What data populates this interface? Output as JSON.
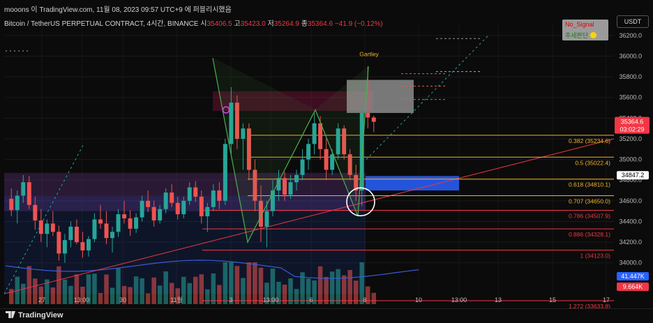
{
  "header": {
    "publisher_line": "mooons 이 TradingView.com, 11월 08, 2023 09:57 UTC+9 에 퍼블리시했음",
    "symbol": "Bitcoin / TetherUS PERPETUAL CONTRACT, 4시간, BINANCE",
    "o_label": "시",
    "o_value": "35406.5",
    "h_label": "고",
    "h_value": "35423.0",
    "l_label": "저",
    "l_value": "35264.9",
    "c_label": "종",
    "c_value": "35364.6",
    "change": "−41.9 (−0.12%)",
    "currency": "USDT"
  },
  "indicator_box": {
    "line1": "No_Signal",
    "line2": "추세판단"
  },
  "pattern_label": "Gartley",
  "footer": {
    "logo_text": "TradingView"
  },
  "colors": {
    "bg": "#0b0b0b",
    "up": "#26a69a",
    "down": "#ef5350",
    "fib": "#f0b429",
    "fib_low": "#f23645",
    "harmonic": "#4caf50",
    "demand_zone": "#2962ff",
    "supply_zone": "#9c27b0",
    "trendline": "#f23645",
    "ma": "#3a5bd9"
  },
  "chart_data": {
    "type": "candlestick",
    "timeframe": "4h",
    "y_axis": {
      "min": 33600,
      "max": 36300,
      "ticks": [
        36200,
        36000,
        35800,
        35600,
        35400,
        35200,
        35000,
        34800,
        34600,
        34400,
        34200,
        34000
      ]
    },
    "x_ticks": [
      "27",
      "13:00",
      "30",
      "11월",
      "3",
      "13:00",
      "6",
      "8",
      "10",
      "13:00",
      "13",
      "15",
      "17"
    ],
    "price_badges": [
      {
        "value": "35364.6",
        "sub": "03:02:29",
        "kind": "last"
      },
      {
        "value": "34847.2",
        "kind": "line"
      },
      {
        "value": "41.447K",
        "kind": "volume"
      },
      {
        "value": "9.664K",
        "kind": "volume_down"
      }
    ],
    "fib_levels": [
      {
        "label": "0.382 (35234.6)",
        "ratio": 0.382,
        "price": 35234.6
      },
      {
        "label": "0.5 (35022.4)",
        "ratio": 0.5,
        "price": 35022.4
      },
      {
        "label": "0.618 (34810.1)",
        "ratio": 0.618,
        "price": 34810.1
      },
      {
        "label": "0.707 (34650.0)",
        "ratio": 0.707,
        "price": 34650.0
      },
      {
        "label": "0.786 (34507.9)",
        "ratio": 0.786,
        "price": 34507.9
      },
      {
        "label": "0.886 (34328.1)",
        "ratio": 0.886,
        "price": 34328.1
      },
      {
        "label": "1 (34123.0)",
        "ratio": 1,
        "price": 34123.0
      },
      {
        "label": "1.272 (33633.8)",
        "ratio": 1.272,
        "price": 33633.8
      }
    ],
    "harmonic_points": [
      {
        "t": 0.205,
        "p": 35700
      },
      {
        "t": 0.283,
        "p": 34150
      },
      {
        "t": 0.385,
        "p": 35450
      },
      {
        "t": 0.425,
        "p": 34920
      },
      {
        "t": 0.43,
        "p": 34550
      },
      {
        "t": 0.458,
        "p": 35900
      }
    ],
    "zones": [
      {
        "name": "supply",
        "p_top": 35660,
        "p_bot": 35470
      },
      {
        "name": "demand",
        "p_top": 34840,
        "p_bot": 34700
      },
      {
        "name": "range",
        "p_top": 34870,
        "p_bot": 34500
      },
      {
        "name": "target",
        "p_top": 35770,
        "p_bot": 35450
      }
    ],
    "candles": [
      [
        34620,
        34720,
        34450,
        34510
      ],
      [
        34510,
        34700,
        34380,
        34650
      ],
      [
        34650,
        34850,
        34580,
        34780
      ],
      [
        34780,
        34840,
        34520,
        34560
      ],
      [
        34560,
        34640,
        34320,
        34410
      ],
      [
        34410,
        34520,
        34200,
        34280
      ],
      [
        34280,
        34420,
        34150,
        34380
      ],
      [
        34380,
        34500,
        34260,
        34300
      ],
      [
        34300,
        34360,
        34020,
        34090
      ],
      [
        34090,
        34280,
        34000,
        34220
      ],
      [
        34220,
        34400,
        34150,
        34350
      ],
      [
        34350,
        34420,
        34180,
        34200
      ],
      [
        34200,
        34300,
        34050,
        34120
      ],
      [
        34120,
        34260,
        34060,
        34230
      ],
      [
        34230,
        34480,
        34200,
        34420
      ],
      [
        34420,
        34560,
        34330,
        34380
      ],
      [
        34380,
        34500,
        34180,
        34240
      ],
      [
        34240,
        34350,
        34100,
        34300
      ],
      [
        34300,
        34520,
        34250,
        34470
      ],
      [
        34470,
        34600,
        34380,
        34430
      ],
      [
        34430,
        34510,
        34260,
        34330
      ],
      [
        34330,
        34480,
        34290,
        34440
      ],
      [
        34440,
        34650,
        34400,
        34600
      ],
      [
        34600,
        34700,
        34490,
        34540
      ],
      [
        34540,
        34600,
        34350,
        34410
      ],
      [
        34410,
        34560,
        34380,
        34520
      ],
      [
        34520,
        34720,
        34480,
        34680
      ],
      [
        34680,
        34760,
        34540,
        34580
      ],
      [
        34580,
        34640,
        34420,
        34470
      ],
      [
        34470,
        34640,
        34430,
        34600
      ],
      [
        34600,
        34780,
        34560,
        34730
      ],
      [
        34730,
        34790,
        34590,
        34640
      ],
      [
        34640,
        34700,
        34380,
        34450
      ],
      [
        34450,
        34580,
        34300,
        34540
      ],
      [
        34540,
        34760,
        34500,
        34700
      ],
      [
        34700,
        34780,
        34520,
        34600
      ],
      [
        34600,
        35200,
        34560,
        35150
      ],
      [
        35150,
        35700,
        35050,
        35550
      ],
      [
        35550,
        35620,
        35100,
        35200
      ],
      [
        35200,
        35350,
        34900,
        35300
      ],
      [
        35300,
        35350,
        34800,
        34900
      ],
      [
        34900,
        35000,
        34500,
        34600
      ],
      [
        34600,
        34750,
        34200,
        34350
      ],
      [
        34350,
        34600,
        34150,
        34500
      ],
      [
        34500,
        34800,
        34450,
        34700
      ],
      [
        34700,
        34900,
        34600,
        34820
      ],
      [
        34820,
        34880,
        34600,
        34660
      ],
      [
        34660,
        34850,
        34620,
        34780
      ],
      [
        34780,
        34900,
        34700,
        34850
      ],
      [
        34850,
        35100,
        34800,
        35000
      ],
      [
        35000,
        35200,
        34900,
        35150
      ],
      [
        35150,
        35450,
        35050,
        35350
      ],
      [
        35350,
        35420,
        35000,
        35100
      ],
      [
        35100,
        35200,
        34800,
        34900
      ],
      [
        34900,
        35100,
        34850,
        35050
      ],
      [
        35050,
        35350,
        35000,
        35300
      ],
      [
        35300,
        35330,
        35000,
        35050
      ],
      [
        35050,
        35100,
        34800,
        34850
      ],
      [
        34850,
        34950,
        34600,
        34700
      ],
      [
        34700,
        35500,
        34550,
        35450
      ],
      [
        35450,
        35900,
        35300,
        35406.5
      ],
      [
        35406.5,
        35423,
        35264.9,
        35364.6
      ]
    ]
  }
}
